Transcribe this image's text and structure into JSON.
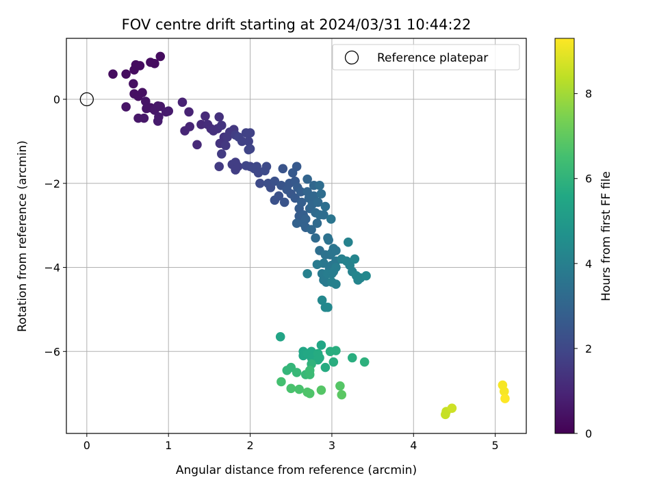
{
  "chart_data": {
    "type": "scatter",
    "title": "FOV centre drift starting at 2024/03/31 10:44:22",
    "xlabel": "Angular distance from reference (arcmin)",
    "ylabel": "Rotation from reference (arcmin)",
    "xlim": [
      -0.25,
      5.38
    ],
    "ylim": [
      -7.95,
      1.45
    ],
    "xticks": [
      0,
      1,
      2,
      3,
      4,
      5
    ],
    "yticks": [
      0,
      -2,
      -4,
      -6
    ],
    "grid": true,
    "legend": {
      "position": "top-right",
      "label": "Reference platepar"
    },
    "reference_point": {
      "x": 0,
      "y": 0
    },
    "colorbar": {
      "label": "Hours from first FF file",
      "min": 0,
      "max": 9.3,
      "ticks": [
        0,
        2,
        4,
        6,
        8
      ],
      "colormap": "viridis"
    },
    "points": [
      {
        "x": 0.32,
        "y": 0.6,
        "c": 0.3
      },
      {
        "x": 0.48,
        "y": 0.6,
        "c": 0.3
      },
      {
        "x": 0.58,
        "y": 0.7,
        "c": 0.3
      },
      {
        "x": 0.6,
        "y": 0.82,
        "c": 0.3
      },
      {
        "x": 0.65,
        "y": 0.8,
        "c": 0.3
      },
      {
        "x": 0.78,
        "y": 0.88,
        "c": 0.3
      },
      {
        "x": 0.83,
        "y": 0.85,
        "c": 0.3
      },
      {
        "x": 0.9,
        "y": 1.02,
        "c": 0.3
      },
      {
        "x": 0.57,
        "y": 0.37,
        "c": 0.4
      },
      {
        "x": 0.58,
        "y": 0.13,
        "c": 0.4
      },
      {
        "x": 0.63,
        "y": 0.07,
        "c": 0.4
      },
      {
        "x": 0.68,
        "y": 0.16,
        "c": 0.4
      },
      {
        "x": 0.72,
        "y": -0.05,
        "c": 0.5
      },
      {
        "x": 0.48,
        "y": -0.18,
        "c": 0.5
      },
      {
        "x": 0.73,
        "y": -0.22,
        "c": 0.5
      },
      {
        "x": 0.78,
        "y": -0.2,
        "c": 0.5
      },
      {
        "x": 0.83,
        "y": -0.26,
        "c": 0.6
      },
      {
        "x": 0.87,
        "y": -0.16,
        "c": 0.6
      },
      {
        "x": 0.9,
        "y": -0.17,
        "c": 0.6
      },
      {
        "x": 0.63,
        "y": -0.45,
        "c": 0.6
      },
      {
        "x": 0.7,
        "y": -0.45,
        "c": 0.6
      },
      {
        "x": 0.87,
        "y": -0.52,
        "c": 0.7
      },
      {
        "x": 0.88,
        "y": -0.42,
        "c": 0.7
      },
      {
        "x": 0.97,
        "y": -0.3,
        "c": 0.7
      },
      {
        "x": 1.0,
        "y": -0.28,
        "c": 0.7
      },
      {
        "x": 1.17,
        "y": -0.07,
        "c": 0.9
      },
      {
        "x": 1.25,
        "y": -0.3,
        "c": 0.9
      },
      {
        "x": 1.2,
        "y": -0.75,
        "c": 1.0
      },
      {
        "x": 1.26,
        "y": -0.65,
        "c": 1.0
      },
      {
        "x": 1.35,
        "y": -1.08,
        "c": 1.1
      },
      {
        "x": 1.4,
        "y": -0.6,
        "c": 1.1
      },
      {
        "x": 1.45,
        "y": -0.4,
        "c": 1.1
      },
      {
        "x": 1.48,
        "y": -0.6,
        "c": 1.2
      },
      {
        "x": 1.52,
        "y": -0.7,
        "c": 1.2
      },
      {
        "x": 1.55,
        "y": -0.75,
        "c": 1.3
      },
      {
        "x": 1.6,
        "y": -0.7,
        "c": 1.3
      },
      {
        "x": 1.62,
        "y": -0.42,
        "c": 1.3
      },
      {
        "x": 1.65,
        "y": -0.62,
        "c": 1.4
      },
      {
        "x": 1.68,
        "y": -0.9,
        "c": 1.4
      },
      {
        "x": 1.63,
        "y": -1.05,
        "c": 1.4
      },
      {
        "x": 1.72,
        "y": -0.9,
        "c": 1.5
      },
      {
        "x": 1.7,
        "y": -1.1,
        "c": 1.5
      },
      {
        "x": 1.75,
        "y": -0.78,
        "c": 1.5
      },
      {
        "x": 1.8,
        "y": -0.72,
        "c": 1.5
      },
      {
        "x": 1.65,
        "y": -1.3,
        "c": 1.6
      },
      {
        "x": 1.62,
        "y": -1.6,
        "c": 1.6
      },
      {
        "x": 1.78,
        "y": -1.55,
        "c": 1.7
      },
      {
        "x": 1.82,
        "y": -1.5,
        "c": 1.7
      },
      {
        "x": 1.85,
        "y": -1.6,
        "c": 1.7
      },
      {
        "x": 1.82,
        "y": -1.68,
        "c": 1.7
      },
      {
        "x": 1.82,
        "y": -0.85,
        "c": 1.7
      },
      {
        "x": 1.86,
        "y": -0.9,
        "c": 1.8
      },
      {
        "x": 1.9,
        "y": -1.0,
        "c": 1.8
      },
      {
        "x": 1.95,
        "y": -0.8,
        "c": 1.8
      },
      {
        "x": 1.98,
        "y": -1.0,
        "c": 1.8
      },
      {
        "x": 2.0,
        "y": -0.8,
        "c": 1.8
      },
      {
        "x": 1.98,
        "y": -1.2,
        "c": 1.9
      },
      {
        "x": 2.0,
        "y": -1.18,
        "c": 1.9
      },
      {
        "x": 1.95,
        "y": -1.58,
        "c": 1.9
      },
      {
        "x": 2.0,
        "y": -1.6,
        "c": 1.9
      },
      {
        "x": 2.05,
        "y": -1.65,
        "c": 2.0
      },
      {
        "x": 2.08,
        "y": -1.6,
        "c": 2.0
      },
      {
        "x": 2.1,
        "y": -1.75,
        "c": 2.0
      },
      {
        "x": 2.12,
        "y": -2.0,
        "c": 2.1
      },
      {
        "x": 2.18,
        "y": -1.7,
        "c": 2.1
      },
      {
        "x": 2.2,
        "y": -1.6,
        "c": 2.1
      },
      {
        "x": 2.22,
        "y": -2.0,
        "c": 2.2
      },
      {
        "x": 2.25,
        "y": -2.1,
        "c": 2.2
      },
      {
        "x": 2.3,
        "y": -1.95,
        "c": 2.3
      },
      {
        "x": 2.3,
        "y": -2.4,
        "c": 2.3
      },
      {
        "x": 2.35,
        "y": -2.3,
        "c": 2.3
      },
      {
        "x": 2.38,
        "y": -2.05,
        "c": 2.4
      },
      {
        "x": 2.4,
        "y": -1.65,
        "c": 2.4
      },
      {
        "x": 2.42,
        "y": -2.45,
        "c": 2.4
      },
      {
        "x": 2.45,
        "y": -2.15,
        "c": 2.5
      },
      {
        "x": 2.48,
        "y": -2.0,
        "c": 2.5
      },
      {
        "x": 2.5,
        "y": -2.25,
        "c": 2.5
      },
      {
        "x": 2.52,
        "y": -1.75,
        "c": 2.6
      },
      {
        "x": 2.55,
        "y": -2.35,
        "c": 2.6
      },
      {
        "x": 2.55,
        "y": -1.95,
        "c": 2.6
      },
      {
        "x": 2.57,
        "y": -1.6,
        "c": 2.6
      },
      {
        "x": 2.58,
        "y": -2.1,
        "c": 2.7
      },
      {
        "x": 2.6,
        "y": -2.6,
        "c": 2.7
      },
      {
        "x": 2.6,
        "y": -2.78,
        "c": 2.7
      },
      {
        "x": 2.62,
        "y": -2.2,
        "c": 2.8
      },
      {
        "x": 2.63,
        "y": -2.45,
        "c": 2.8
      },
      {
        "x": 2.65,
        "y": -2.75,
        "c": 2.8
      },
      {
        "x": 2.65,
        "y": -2.95,
        "c": 2.9
      },
      {
        "x": 2.57,
        "y": -2.95,
        "c": 2.9
      },
      {
        "x": 2.68,
        "y": -2.85,
        "c": 2.9
      },
      {
        "x": 2.68,
        "y": -3.05,
        "c": 2.9
      },
      {
        "x": 2.7,
        "y": -2.2,
        "c": 3.0
      },
      {
        "x": 2.7,
        "y": -1.9,
        "c": 3.0
      },
      {
        "x": 2.72,
        "y": -2.35,
        "c": 3.0
      },
      {
        "x": 2.73,
        "y": -2.6,
        "c": 3.0
      },
      {
        "x": 2.75,
        "y": -3.1,
        "c": 3.1
      },
      {
        "x": 2.76,
        "y": -2.5,
        "c": 3.1
      },
      {
        "x": 2.78,
        "y": -2.3,
        "c": 3.1
      },
      {
        "x": 2.78,
        "y": -2.05,
        "c": 3.1
      },
      {
        "x": 2.8,
        "y": -2.7,
        "c": 3.2
      },
      {
        "x": 2.8,
        "y": -3.3,
        "c": 3.2
      },
      {
        "x": 2.82,
        "y": -2.95,
        "c": 3.2
      },
      {
        "x": 2.83,
        "y": -2.45,
        "c": 3.2
      },
      {
        "x": 2.85,
        "y": -2.75,
        "c": 3.3
      },
      {
        "x": 2.85,
        "y": -2.05,
        "c": 3.3
      },
      {
        "x": 2.87,
        "y": -2.25,
        "c": 3.3
      },
      {
        "x": 2.9,
        "y": -2.75,
        "c": 3.3
      },
      {
        "x": 2.92,
        "y": -2.55,
        "c": 3.4
      },
      {
        "x": 2.85,
        "y": -3.6,
        "c": 3.4
      },
      {
        "x": 2.92,
        "y": -3.7,
        "c": 3.5
      },
      {
        "x": 2.95,
        "y": -3.3,
        "c": 3.5
      },
      {
        "x": 2.96,
        "y": -3.35,
        "c": 3.5
      },
      {
        "x": 2.98,
        "y": -3.7,
        "c": 3.5
      },
      {
        "x": 2.99,
        "y": -2.85,
        "c": 3.6
      },
      {
        "x": 3.0,
        "y": -3.65,
        "c": 3.6
      },
      {
        "x": 3.02,
        "y": -3.55,
        "c": 3.6
      },
      {
        "x": 3.05,
        "y": -3.6,
        "c": 3.6
      },
      {
        "x": 3.05,
        "y": -3.85,
        "c": 3.7
      },
      {
        "x": 3.0,
        "y": -3.95,
        "c": 3.7
      },
      {
        "x": 2.97,
        "y": -4.05,
        "c": 3.7
      },
      {
        "x": 2.9,
        "y": -3.9,
        "c": 3.7
      },
      {
        "x": 2.82,
        "y": -3.93,
        "c": 3.8
      },
      {
        "x": 2.88,
        "y": -4.15,
        "c": 3.8
      },
      {
        "x": 2.9,
        "y": -4.3,
        "c": 3.8
      },
      {
        "x": 2.93,
        "y": -4.35,
        "c": 3.8
      },
      {
        "x": 2.95,
        "y": -4.15,
        "c": 3.9
      },
      {
        "x": 3.0,
        "y": -4.15,
        "c": 3.9
      },
      {
        "x": 3.02,
        "y": -4.1,
        "c": 3.9
      },
      {
        "x": 3.05,
        "y": -4.0,
        "c": 3.9
      },
      {
        "x": 3.0,
        "y": -4.35,
        "c": 4.0
      },
      {
        "x": 3.05,
        "y": -4.4,
        "c": 4.0
      },
      {
        "x": 2.7,
        "y": -4.15,
        "c": 4.0
      },
      {
        "x": 3.12,
        "y": -3.8,
        "c": 4.0
      },
      {
        "x": 3.18,
        "y": -3.85,
        "c": 4.1
      },
      {
        "x": 3.2,
        "y": -3.4,
        "c": 4.1
      },
      {
        "x": 3.22,
        "y": -3.95,
        "c": 4.1
      },
      {
        "x": 3.25,
        "y": -4.1,
        "c": 4.1
      },
      {
        "x": 3.28,
        "y": -3.8,
        "c": 4.2
      },
      {
        "x": 3.3,
        "y": -4.2,
        "c": 4.2
      },
      {
        "x": 3.32,
        "y": -4.3,
        "c": 4.2
      },
      {
        "x": 3.35,
        "y": -4.25,
        "c": 4.2
      },
      {
        "x": 3.42,
        "y": -4.2,
        "c": 4.3
      },
      {
        "x": 2.88,
        "y": -4.78,
        "c": 4.3
      },
      {
        "x": 2.92,
        "y": -4.95,
        "c": 4.3
      },
      {
        "x": 2.95,
        "y": -4.95,
        "c": 4.3
      },
      {
        "x": 2.37,
        "y": -5.65,
        "c": 5.4
      },
      {
        "x": 2.87,
        "y": -5.85,
        "c": 5.5
      },
      {
        "x": 2.65,
        "y": -6.0,
        "c": 5.5
      },
      {
        "x": 2.65,
        "y": -6.1,
        "c": 5.5
      },
      {
        "x": 2.7,
        "y": -6.05,
        "c": 5.6
      },
      {
        "x": 2.75,
        "y": -6.0,
        "c": 5.6
      },
      {
        "x": 2.75,
        "y": -6.15,
        "c": 5.6
      },
      {
        "x": 2.8,
        "y": -6.1,
        "c": 5.6
      },
      {
        "x": 2.83,
        "y": -6.05,
        "c": 5.7
      },
      {
        "x": 2.83,
        "y": -6.2,
        "c": 5.7
      },
      {
        "x": 2.85,
        "y": -6.15,
        "c": 5.7
      },
      {
        "x": 2.92,
        "y": -6.38,
        "c": 5.7
      },
      {
        "x": 2.98,
        "y": -6.0,
        "c": 5.8
      },
      {
        "x": 3.02,
        "y": -6.25,
        "c": 5.8
      },
      {
        "x": 3.05,
        "y": -5.98,
        "c": 5.8
      },
      {
        "x": 3.25,
        "y": -6.15,
        "c": 5.8
      },
      {
        "x": 3.4,
        "y": -6.25,
        "c": 5.9
      },
      {
        "x": 2.75,
        "y": -6.3,
        "c": 6.0
      },
      {
        "x": 2.45,
        "y": -6.45,
        "c": 6.1
      },
      {
        "x": 2.5,
        "y": -6.38,
        "c": 6.1
      },
      {
        "x": 2.57,
        "y": -6.5,
        "c": 6.2
      },
      {
        "x": 2.68,
        "y": -6.55,
        "c": 6.2
      },
      {
        "x": 2.73,
        "y": -6.55,
        "c": 6.3
      },
      {
        "x": 2.73,
        "y": -6.45,
        "c": 6.3
      },
      {
        "x": 2.38,
        "y": -6.72,
        "c": 6.5
      },
      {
        "x": 2.5,
        "y": -6.88,
        "c": 6.6
      },
      {
        "x": 2.6,
        "y": -6.9,
        "c": 6.6
      },
      {
        "x": 2.7,
        "y": -6.97,
        "c": 6.7
      },
      {
        "x": 2.73,
        "y": -7.0,
        "c": 6.7
      },
      {
        "x": 2.87,
        "y": -6.92,
        "c": 6.8
      },
      {
        "x": 3.1,
        "y": -6.82,
        "c": 6.8
      },
      {
        "x": 3.12,
        "y": -7.03,
        "c": 6.9
      },
      {
        "x": 4.39,
        "y": -7.5,
        "c": 8.5
      },
      {
        "x": 4.4,
        "y": -7.43,
        "c": 8.5
      },
      {
        "x": 4.47,
        "y": -7.35,
        "c": 8.6
      },
      {
        "x": 5.09,
        "y": -6.8,
        "c": 9.2
      },
      {
        "x": 5.11,
        "y": -6.95,
        "c": 9.2
      },
      {
        "x": 5.12,
        "y": -7.12,
        "c": 9.3
      }
    ]
  }
}
